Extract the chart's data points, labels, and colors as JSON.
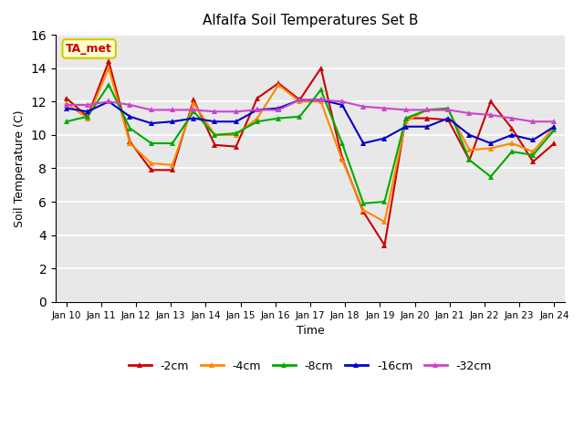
{
  "title": "Alfalfa Soil Temperatures Set B",
  "xlabel": "Time",
  "ylabel": "Soil Temperature (C)",
  "ylim": [
    0,
    16
  ],
  "yticks": [
    0,
    2,
    4,
    6,
    8,
    10,
    12,
    14,
    16
  ],
  "background_color": "#e8e8e8",
  "annotation_text": "TA_met",
  "annotation_bg": "#ffffcc",
  "annotation_border": "#cccc00",
  "x_labels": [
    "Jan 10",
    "Jan 11",
    "Jan 12",
    "Jan 13",
    "Jan 14",
    "Jan 15",
    "Jan 16",
    "Jan 17",
    "Jan 18",
    "Jan 19",
    "Jan 20",
    "Jan 21",
    "Jan 22",
    "Jan 23",
    "Jan 24"
  ],
  "series_order": [
    "-2cm",
    "-4cm",
    "-8cm",
    "-16cm",
    "-32cm"
  ],
  "series": {
    "-2cm": {
      "color": "#cc0000",
      "data": [
        12.2,
        11.1,
        14.4,
        9.6,
        7.9,
        7.9,
        12.1,
        9.4,
        9.3,
        12.2,
        13.1,
        12.1,
        14.0,
        8.6,
        5.4,
        3.4,
        11.0,
        11.0,
        10.9,
        8.5,
        12.0,
        10.4,
        8.4,
        9.5
      ]
    },
    "-4cm": {
      "color": "#ff8800",
      "data": [
        11.9,
        11.0,
        14.0,
        9.5,
        8.3,
        8.2,
        11.9,
        10.0,
        10.0,
        11.0,
        13.0,
        12.0,
        12.0,
        8.5,
        5.5,
        4.8,
        10.8,
        11.5,
        11.5,
        9.1,
        9.2,
        9.5,
        9.0,
        10.5
      ]
    },
    "-8cm": {
      "color": "#00aa00",
      "data": [
        10.8,
        11.1,
        13.0,
        10.4,
        9.5,
        9.5,
        11.4,
        10.0,
        10.1,
        10.8,
        11.0,
        11.1,
        12.7,
        9.5,
        5.9,
        6.0,
        11.0,
        11.5,
        11.6,
        8.5,
        7.5,
        9.0,
        8.8,
        10.3
      ]
    },
    "-16cm": {
      "color": "#0000cc",
      "data": [
        11.6,
        11.4,
        12.0,
        11.1,
        10.7,
        10.8,
        11.0,
        10.8,
        10.8,
        11.5,
        11.6,
        12.1,
        12.1,
        11.8,
        9.5,
        9.8,
        10.5,
        10.5,
        11.0,
        10.0,
        9.5,
        10.0,
        9.7,
        10.5
      ]
    },
    "-32cm": {
      "color": "#cc44cc",
      "data": [
        11.8,
        11.8,
        12.0,
        11.8,
        11.5,
        11.5,
        11.5,
        11.4,
        11.4,
        11.5,
        11.5,
        12.1,
        12.1,
        12.0,
        11.7,
        11.6,
        11.5,
        11.5,
        11.5,
        11.3,
        11.2,
        11.0,
        10.8,
        10.8
      ]
    }
  }
}
